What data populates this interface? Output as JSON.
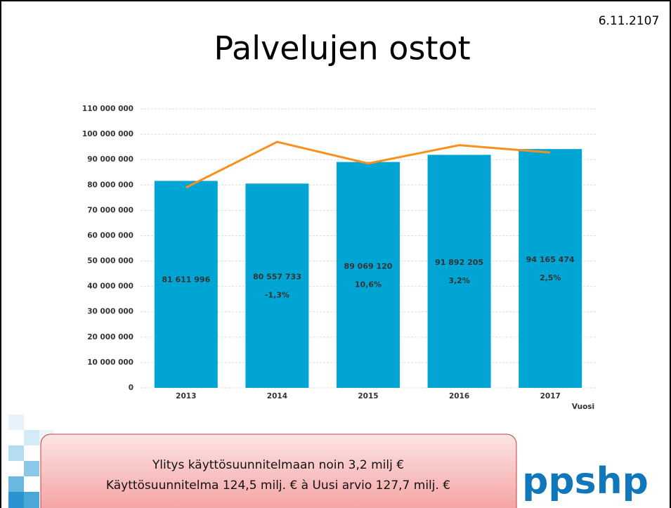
{
  "date": "6.11.2107",
  "chart_data": {
    "type": "bar",
    "title": "Palvelujen ostot",
    "xlabel": "Vuosi",
    "categories": [
      "2013",
      "2014",
      "2015",
      "2016",
      "2017"
    ],
    "series": [
      {
        "type": "bar",
        "color": "#00a5d4",
        "values": [
          81611996,
          80557733,
          89069120,
          91892205,
          94165474
        ],
        "value_labels": [
          "81 611 996",
          "80 557 733",
          "89 069 120",
          "91 892 205",
          "94 165 474"
        ],
        "change_labels": [
          null,
          "-1,3%",
          "10,6%",
          "3,2%",
          "2,5%"
        ]
      },
      {
        "type": "line",
        "color": "#f7901e",
        "values": [
          79000000,
          97000000,
          88500000,
          95700000,
          92800000
        ]
      }
    ],
    "ylim": [
      0,
      110000000
    ],
    "yticks": [
      0,
      {
        "value": 10000000,
        "label": "10 000 000"
      },
      {
        "value": 20000000,
        "label": "20 000 000"
      },
      {
        "value": 30000000,
        "label": "30 000 000"
      },
      {
        "value": 40000000,
        "label": "40 000 000"
      },
      {
        "value": 50000000,
        "label": "50 000 000"
      },
      {
        "value": 60000000,
        "label": "60 000 000"
      },
      {
        "value": 70000000,
        "label": "70 000 000"
      },
      {
        "value": 80000000,
        "label": "80 000 000"
      },
      {
        "value": 90000000,
        "label": "90 000 000"
      },
      {
        "value": 100000000,
        "label": "100 000 000"
      },
      {
        "value": 110000000,
        "label": "110 000 000"
      }
    ],
    "grid": true
  },
  "note": {
    "lines": [
      "Ylitys käyttösuunnitelmaan noin 3,2 milj €",
      "Käyttösuunnitelma 124,5 milj. € à Uusi arvio 127,7 milj. €"
    ]
  },
  "logo": "ppshp"
}
